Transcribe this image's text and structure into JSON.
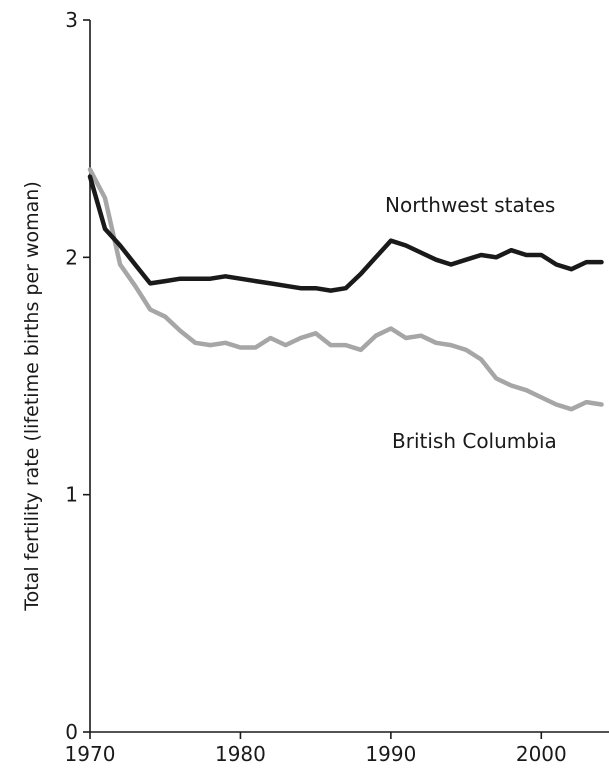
{
  "chart_data": {
    "type": "line",
    "title": "",
    "xlabel": "",
    "ylabel": "Total fertility rate (lifetime births per woman)",
    "xlim": [
      1970,
      2004.5
    ],
    "ylim": [
      0,
      3
    ],
    "x_ticks": [
      1970,
      1980,
      1990,
      2000
    ],
    "y_ticks": [
      0,
      1,
      2,
      3
    ],
    "grid": false,
    "legend": "direct labels",
    "series": [
      {
        "name": "Northwest states",
        "color": "#1a1a1a",
        "x": [
          1970,
          1971,
          1972,
          1973,
          1974,
          1975,
          1976,
          1977,
          1978,
          1979,
          1980,
          1981,
          1982,
          1983,
          1984,
          1985,
          1986,
          1987,
          1988,
          1989,
          1990,
          1991,
          1992,
          1993,
          1994,
          1995,
          1996,
          1997,
          1998,
          1999,
          2000,
          2001,
          2002,
          2003,
          2004
        ],
        "values": [
          2.34,
          2.12,
          2.05,
          1.97,
          1.89,
          1.9,
          1.91,
          1.91,
          1.91,
          1.92,
          1.91,
          1.9,
          1.89,
          1.88,
          1.87,
          1.87,
          1.86,
          1.87,
          1.93,
          2.0,
          2.07,
          2.05,
          2.02,
          1.99,
          1.97,
          1.99,
          2.01,
          2.0,
          2.03,
          2.01,
          2.01,
          1.97,
          1.95,
          1.98,
          1.98
        ]
      },
      {
        "name": "British Columbia",
        "color": "#a6a6a6",
        "x": [
          1970,
          1971,
          1972,
          1973,
          1974,
          1975,
          1976,
          1977,
          1978,
          1979,
          1980,
          1981,
          1982,
          1983,
          1984,
          1985,
          1986,
          1987,
          1988,
          1989,
          1990,
          1991,
          1992,
          1993,
          1994,
          1995,
          1996,
          1997,
          1998,
          1999,
          2000,
          2001,
          2002,
          2003,
          2004
        ],
        "values": [
          2.37,
          2.25,
          1.97,
          1.88,
          1.78,
          1.75,
          1.69,
          1.64,
          1.63,
          1.64,
          1.62,
          1.62,
          1.66,
          1.63,
          1.66,
          1.68,
          1.63,
          1.63,
          1.61,
          1.67,
          1.7,
          1.66,
          1.67,
          1.64,
          1.63,
          1.61,
          1.57,
          1.49,
          1.46,
          1.44,
          1.41,
          1.38,
          1.36,
          1.39,
          1.38
        ]
      }
    ]
  }
}
